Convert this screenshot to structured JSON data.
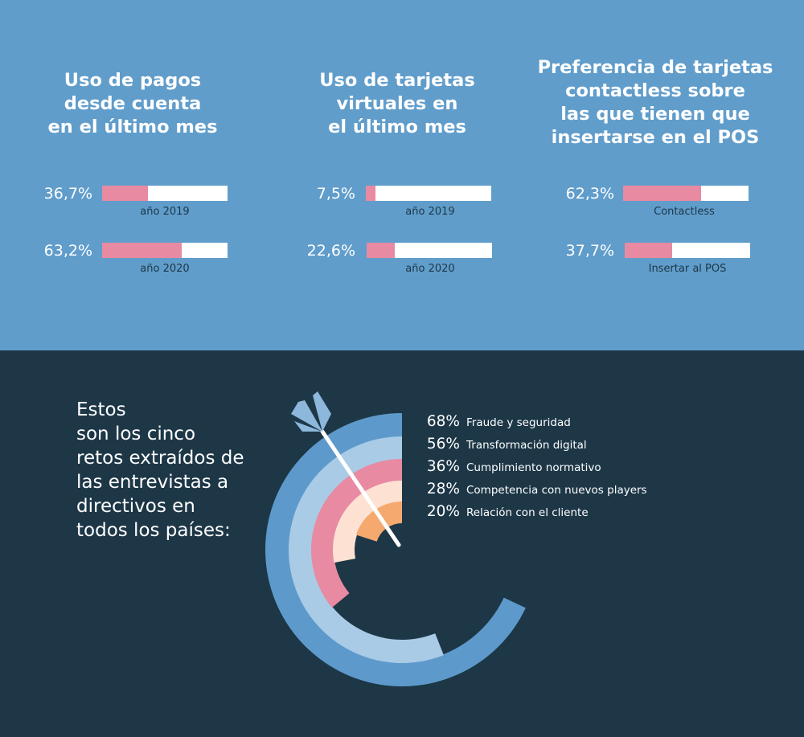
{
  "chart_data": [
    {
      "type": "bar",
      "title": "Uso de pagos\ndesde cuenta\nen el último mes",
      "categories": [
        "año 2019",
        "año 2020"
      ],
      "values": [
        36.7,
        63.2
      ],
      "value_labels": [
        "36,7%",
        "63,2%"
      ],
      "ylim": [
        0,
        100
      ]
    },
    {
      "type": "bar",
      "title": "Uso de tarjetas\nvirtuales en\nel último mes",
      "categories": [
        "año 2019",
        "año 2020"
      ],
      "values": [
        7.5,
        22.6
      ],
      "value_labels": [
        "7,5%",
        "22,6%"
      ],
      "ylim": [
        0,
        100
      ]
    },
    {
      "type": "bar",
      "title": "Preferencia de tarjetas\ncontactless sobre\nlas que tienen que\ninsertarse en el POS",
      "categories": [
        "Contactless",
        "Insertar al POS"
      ],
      "values": [
        62.3,
        37.7
      ],
      "value_labels": [
        "62,3%",
        "37,7%"
      ],
      "ylim": [
        0,
        100
      ]
    },
    {
      "type": "bar",
      "subtype": "radial",
      "title": "Estos\nson los cinco\nretos extraídos de\nlas entrevistas a\ndirectivos en\ntodos los países:",
      "categories": [
        "Fraude y seguridad",
        "Transformación digital",
        "Cumplimiento normativo",
        "Competencia con nuevos players",
        "Relación con el cliente"
      ],
      "values": [
        68,
        56,
        36,
        28,
        20
      ],
      "value_labels": [
        "68%",
        "56%",
        "36%",
        "28%",
        "20%"
      ],
      "colors": [
        "#5d9acb",
        "#a9cbe6",
        "#e88aa2",
        "#fde1d3",
        "#f5a96e"
      ],
      "ylim": [
        0,
        100
      ]
    }
  ],
  "colors": {
    "top_background": "#609dcb",
    "bottom_background": "#1d3747",
    "bar_fill": "#e88aa2",
    "bar_track": "#ffffff",
    "arrow": "#ffffff",
    "fletching": "#8eb7dc"
  }
}
